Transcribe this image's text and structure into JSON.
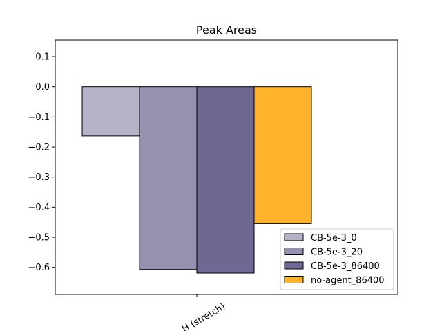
{
  "chart_data": {
    "type": "bar",
    "title": "Peak Areas",
    "xlabel": "",
    "ylabel": "",
    "categories": [
      "...H (stretch)"
    ],
    "series": [
      {
        "name": "CB-5e-3_0",
        "values": [
          -0.163
        ],
        "color": "#b6b3c8"
      },
      {
        "name": "CB-5e-3_20",
        "values": [
          -0.607
        ],
        "color": "#9691ae"
      },
      {
        "name": "CB-5e-3_86400",
        "values": [
          -0.619
        ],
        "color": "#6e6892"
      },
      {
        "name": "no-agent_86400",
        "values": [
          -0.455
        ],
        "color": "#ffb22b"
      }
    ],
    "ylim": [
      -0.69,
      0.155
    ],
    "yticks": [
      0.1,
      0.0,
      -0.1,
      -0.2,
      -0.3,
      -0.4,
      -0.5,
      -0.6
    ],
    "ytick_labels": [
      "0.1",
      "0.0",
      "−0.1",
      "−0.2",
      "−0.3",
      "−0.4",
      "−0.5",
      "−0.6"
    ],
    "grid": false,
    "legend_position": "lower-right"
  }
}
